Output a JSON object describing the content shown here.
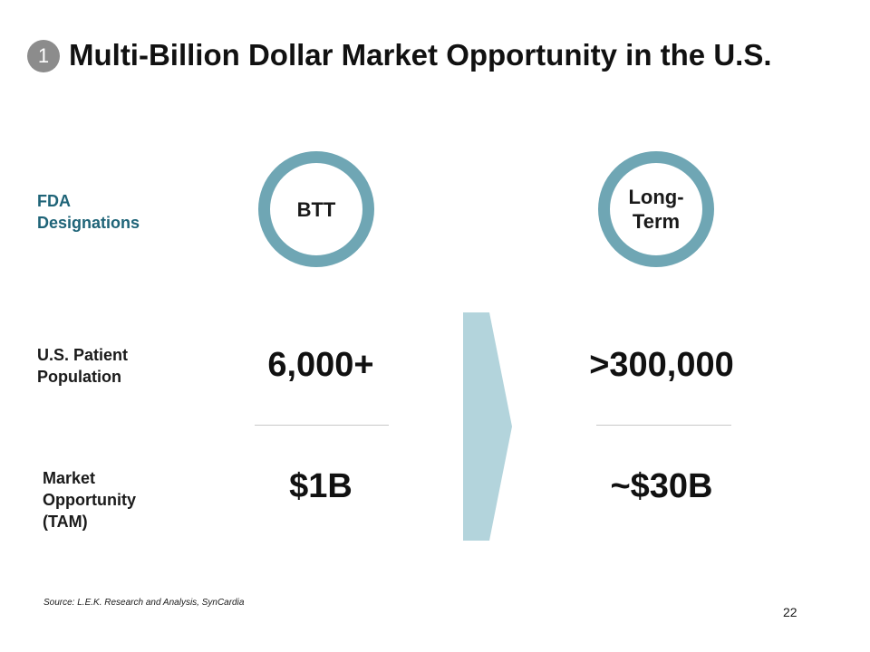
{
  "slide": {
    "badge_number": "1",
    "title": "Multi-Billion Dollar Market Opportunity in the U.S.",
    "row_labels": {
      "fda": [
        "FDA",
        "Designations"
      ],
      "population": [
        "U.S. Patient",
        "Population"
      ],
      "tam": [
        "Market",
        "Opportunity",
        "(TAM)"
      ]
    },
    "columns": {
      "left": {
        "designation": "BTT",
        "population": "6,000+",
        "market": "$1B"
      },
      "right": {
        "designation_lines": [
          "Long-",
          "Term"
        ],
        "population": ">300,000",
        "market": "~$30B"
      }
    },
    "source": "Source: L.E.K. Research and Analysis, SynCardia",
    "page_number": "22"
  },
  "colors": {
    "ring": "#6fa6b4",
    "chevron": "#b3d4dc",
    "fda_label": "#1f6478",
    "badge": "#8c8c8c"
  }
}
